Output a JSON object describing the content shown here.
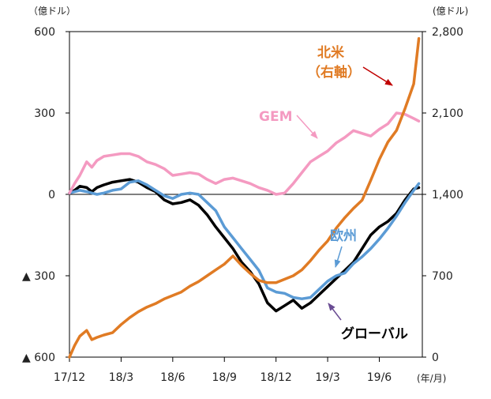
{
  "chart_data": {
    "type": "line",
    "left_unit_label": "（億ドル）",
    "right_unit_label": "(億ドル)",
    "x_unit_label": "(年/月)",
    "left_axis": {
      "range": [
        -600,
        600
      ],
      "ticks": [
        {
          "value": 600,
          "label": "600"
        },
        {
          "value": 300,
          "label": "300"
        },
        {
          "value": 0,
          "label": "0"
        },
        {
          "value": -300,
          "label": "▲ 300"
        },
        {
          "value": -600,
          "label": "▲ 600"
        }
      ]
    },
    "right_axis": {
      "range": [
        0,
        2800
      ],
      "ticks": [
        {
          "value": 2800,
          "label": "2,800"
        },
        {
          "value": 2100,
          "label": "2,100"
        },
        {
          "value": 1400,
          "label": "1,400"
        },
        {
          "value": 700,
          "label": "700"
        },
        {
          "value": 0,
          "label": "0"
        }
      ]
    },
    "x_axis": {
      "range": [
        0,
        20.5
      ],
      "ticks": [
        {
          "value": 0,
          "label": "17/12"
        },
        {
          "value": 3,
          "label": "18/3"
        },
        {
          "value": 6,
          "label": "18/6"
        },
        {
          "value": 9,
          "label": "18/9"
        },
        {
          "value": 12,
          "label": "18/12"
        },
        {
          "value": 15,
          "label": "19/3"
        },
        {
          "value": 18,
          "label": "19/6"
        }
      ]
    },
    "series": [
      {
        "name": "グローバル",
        "axis": "left",
        "color": "#000000",
        "x": [
          0,
          0.3,
          0.6,
          1,
          1.3,
          1.6,
          2,
          2.5,
          3,
          3.5,
          4,
          4.5,
          5,
          5.5,
          6,
          6.5,
          7,
          7.5,
          8,
          8.5,
          9,
          9.5,
          10,
          10.5,
          11,
          11.5,
          12,
          12.5,
          13,
          13.5,
          14,
          14.5,
          15,
          15.5,
          16,
          16.5,
          17,
          17.5,
          18,
          18.5,
          19,
          19.5,
          20,
          20.3
        ],
        "y": [
          5,
          15,
          30,
          25,
          10,
          25,
          35,
          45,
          50,
          55,
          45,
          25,
          10,
          -20,
          -35,
          -30,
          -20,
          -40,
          -75,
          -120,
          -160,
          -200,
          -250,
          -285,
          -330,
          -400,
          -430,
          -410,
          -390,
          -420,
          -400,
          -370,
          -340,
          -310,
          -280,
          -250,
          -200,
          -150,
          -120,
          -100,
          -70,
          -20,
          20,
          25
        ]
      },
      {
        "name": "欧州",
        "axis": "left",
        "color": "#5b9bd5",
        "x": [
          0,
          0.3,
          0.6,
          1,
          1.3,
          1.6,
          2,
          2.5,
          3,
          3.5,
          4,
          4.5,
          5,
          5.5,
          6,
          6.5,
          7,
          7.5,
          8,
          8.5,
          9,
          9.5,
          10,
          10.5,
          11,
          11.5,
          12,
          12.5,
          13,
          13.5,
          14,
          14.5,
          15,
          15.5,
          16,
          16.5,
          17,
          17.5,
          18,
          18.5,
          19,
          19.5,
          20,
          20.3
        ],
        "y": [
          5,
          10,
          15,
          10,
          5,
          0,
          5,
          15,
          20,
          45,
          50,
          35,
          15,
          -5,
          -15,
          0,
          5,
          0,
          -30,
          -60,
          -120,
          -160,
          -200,
          -240,
          -280,
          -345,
          -360,
          -365,
          -380,
          -385,
          -380,
          -350,
          -320,
          -300,
          -290,
          -255,
          -230,
          -200,
          -165,
          -125,
          -80,
          -30,
          15,
          40
        ]
      },
      {
        "name": "GEM",
        "axis": "left",
        "color": "#f49ac1",
        "x": [
          0,
          0.3,
          0.6,
          1,
          1.3,
          1.6,
          2,
          2.5,
          3,
          3.5,
          4,
          4.5,
          5,
          5.5,
          6,
          6.5,
          7,
          7.5,
          8,
          8.5,
          9,
          9.5,
          10,
          10.5,
          11,
          11.5,
          12,
          12.5,
          13,
          13.5,
          14,
          14.5,
          15,
          15.5,
          16,
          16.5,
          17,
          17.5,
          18,
          18.5,
          19,
          19.5,
          20,
          20.3
        ],
        "y": [
          5,
          40,
          70,
          120,
          100,
          125,
          140,
          145,
          150,
          150,
          140,
          120,
          110,
          95,
          70,
          75,
          80,
          75,
          55,
          40,
          55,
          60,
          50,
          40,
          25,
          15,
          0,
          5,
          40,
          80,
          120,
          140,
          160,
          190,
          210,
          235,
          225,
          215,
          240,
          260,
          300,
          295,
          280,
          270
        ]
      },
      {
        "name": "北米",
        "axis": "right",
        "color": "#e07b24",
        "x": [
          0,
          0.3,
          0.6,
          1,
          1.3,
          1.6,
          2,
          2.5,
          3,
          3.5,
          4,
          4.5,
          5,
          5.5,
          6,
          6.5,
          7,
          7.5,
          8,
          8.5,
          9,
          9.5,
          10,
          10.5,
          11,
          11.5,
          12,
          12.5,
          13,
          13.5,
          14,
          14.5,
          15,
          15.5,
          16,
          16.5,
          17,
          17.5,
          18,
          18.5,
          19,
          19.5,
          20,
          20.3
        ],
        "y": [
          0,
          100,
          180,
          230,
          150,
          170,
          190,
          210,
          280,
          340,
          390,
          430,
          460,
          500,
          530,
          560,
          610,
          650,
          700,
          750,
          800,
          870,
          790,
          720,
          660,
          640,
          640,
          670,
          700,
          750,
          830,
          920,
          1000,
          1110,
          1200,
          1280,
          1350,
          1520,
          1700,
          1850,
          1950,
          2140,
          2350,
          2740
        ]
      }
    ],
    "annotations": [
      {
        "id": "kitabei",
        "text": "北米",
        "text2": "（右軸）"
      },
      {
        "id": "gem",
        "text": "GEM"
      },
      {
        "id": "oshu",
        "text": "欧州"
      },
      {
        "id": "global",
        "text": "グローバル"
      }
    ]
  }
}
